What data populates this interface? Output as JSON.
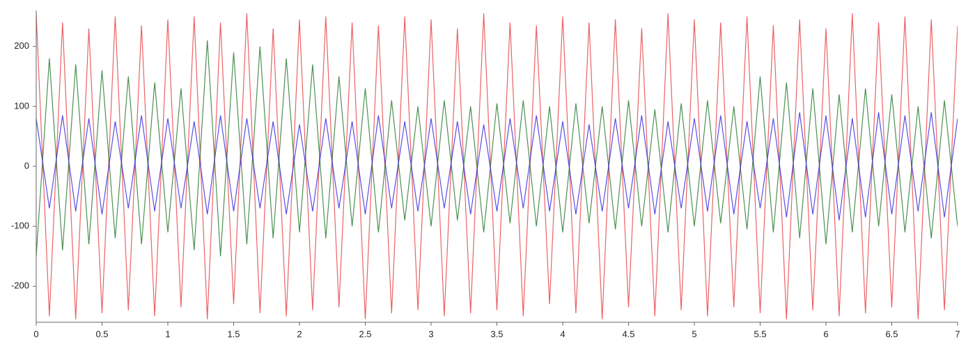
{
  "chart_data": {
    "type": "line",
    "xlim": [
      0,
      7
    ],
    "xticks": [
      0,
      0.5,
      1,
      1.5,
      2,
      2.5,
      3,
      3.5,
      4,
      4.5,
      5,
      5.5,
      6,
      6.5,
      7
    ],
    "ylim": [
      -260,
      260
    ],
    "yticks": [
      -200,
      -100,
      0,
      100,
      200
    ],
    "x": [
      0,
      0.1,
      0.2,
      0.3,
      0.4,
      0.5,
      0.6,
      0.7,
      0.8,
      0.9,
      1,
      1.1,
      1.2,
      1.3,
      1.4,
      1.5,
      1.6,
      1.7,
      1.8,
      1.9,
      2,
      2.1,
      2.2,
      2.3,
      2.4,
      2.5,
      2.6,
      2.7,
      2.8,
      2.9,
      3,
      3.1,
      3.2,
      3.3,
      3.4,
      3.5,
      3.6,
      3.7,
      3.8,
      3.9,
      4,
      4.1,
      4.2,
      4.3,
      4.4,
      4.5,
      4.6,
      4.7,
      4.8,
      4.9,
      5,
      5.1,
      5.2,
      5.3,
      5.4,
      5.5,
      5.6,
      5.7,
      5.8,
      5.9,
      6,
      6.1,
      6.2,
      6.3,
      6.4,
      6.5,
      6.6,
      6.7,
      6.8,
      6.9,
      7
    ],
    "series": [
      {
        "color": "#e8474a",
        "values": [
          255,
          -250,
          240,
          -255,
          230,
          -245,
          250,
          -240,
          235,
          -250,
          245,
          -235,
          250,
          -255,
          240,
          -230,
          255,
          -245,
          230,
          -250,
          245,
          -240,
          250,
          -235,
          240,
          -255,
          235,
          -245,
          250,
          -240,
          245,
          -250,
          230,
          -245,
          255,
          -240,
          240,
          -250,
          235,
          -230,
          250,
          -245,
          240,
          -255,
          245,
          -235,
          230,
          -250,
          255,
          -240,
          245,
          -250,
          240,
          -235,
          250,
          -245,
          235,
          -255,
          245,
          -240,
          230,
          -250,
          255,
          -245,
          240,
          -235,
          250,
          -255,
          245,
          -240,
          235
        ]
      },
      {
        "color": "#2e7d32",
        "values": [
          -150,
          180,
          -140,
          170,
          -130,
          160,
          -120,
          150,
          -130,
          140,
          -110,
          130,
          -140,
          210,
          -150,
          190,
          -130,
          200,
          -120,
          180,
          -110,
          170,
          -120,
          150,
          -100,
          130,
          -110,
          110,
          -90,
          100,
          -100,
          110,
          -90,
          100,
          -110,
          105,
          -95,
          110,
          -100,
          100,
          -110,
          105,
          -95,
          100,
          -105,
          110,
          -100,
          95,
          -110,
          105,
          -100,
          110,
          -95,
          100,
          -105,
          150,
          -110,
          140,
          -120,
          130,
          -130,
          120,
          -110,
          130,
          -100,
          120,
          -110,
          100,
          -120,
          110,
          -100
        ]
      },
      {
        "color": "#3b2fe0",
        "values": [
          80,
          -70,
          85,
          -75,
          80,
          -80,
          75,
          -70,
          85,
          -75,
          80,
          -70,
          75,
          -80,
          85,
          -75,
          80,
          -70,
          75,
          -80,
          70,
          -75,
          80,
          -70,
          75,
          -80,
          85,
          -70,
          75,
          -75,
          80,
          -70,
          75,
          -80,
          70,
          -75,
          80,
          -70,
          85,
          -75,
          75,
          -80,
          70,
          -75,
          80,
          -70,
          85,
          -80,
          75,
          -70,
          80,
          -75,
          85,
          -80,
          75,
          -70,
          80,
          -85,
          90,
          -80,
          85,
          -90,
          80,
          -85,
          90,
          -80,
          85,
          -75,
          90,
          -85,
          80
        ]
      }
    ]
  }
}
